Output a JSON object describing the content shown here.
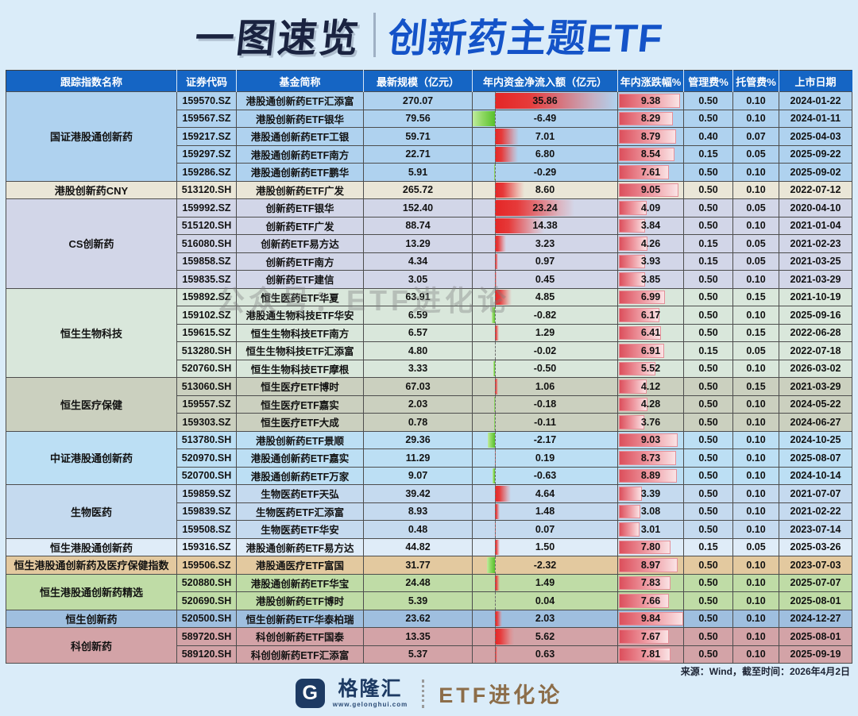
{
  "title": {
    "left": "一图速览",
    "right": "创新药主题ETF"
  },
  "watermark": "公众号：ETF进化论",
  "footer": {
    "source": "来源：Wind，截至时间：2026年4月2日",
    "logo_letter": "G",
    "logo_text": "格隆汇",
    "logo_url": "www.gelonghui.com",
    "brand": "ETF进化论"
  },
  "colors": {
    "page_bg": "#DAECF9",
    "header_bg": "#1565C4",
    "title_left": "#1A2340",
    "title_right": "#1453C8",
    "inflow_positive_bar": "#E42626",
    "inflow_negative_bar": "#8ED862",
    "change_bar": "#DC4F5C",
    "brand": "#8C6D49"
  },
  "chart_data": {
    "type": "table",
    "title": "一图速览 | 创新药主题ETF",
    "columns": [
      "跟踪指数名称",
      "证券代码",
      "基金简称",
      "最新规模（亿元）",
      "年内资金净流入额（亿元）",
      "年内涨跌幅%",
      "管理费%",
      "托管费%",
      "上市日期"
    ],
    "inflow_axis": {
      "min": -6.49,
      "max": 35.86
    },
    "change_axis": {
      "min": 0,
      "max": 9.84
    },
    "groups": [
      {
        "index_name": "国证港股通创新药",
        "color": "#AFD2EF",
        "rows": [
          {
            "code": "159570.SZ",
            "name": "港股通创新药ETF汇添富",
            "scale": "270.07",
            "inflow": 35.86,
            "change": 9.38,
            "mgmt_fee": "0.50",
            "custody_fee": "0.10",
            "list_date": "2024-01-22"
          },
          {
            "code": "159567.SZ",
            "name": "港股创新药ETF银华",
            "scale": "79.56",
            "inflow": -6.49,
            "change": 8.29,
            "mgmt_fee": "0.50",
            "custody_fee": "0.10",
            "list_date": "2024-01-11"
          },
          {
            "code": "159217.SZ",
            "name": "港股通创新药ETF工银",
            "scale": "59.71",
            "inflow": 7.01,
            "change": 8.79,
            "mgmt_fee": "0.40",
            "custody_fee": "0.07",
            "list_date": "2025-04-03"
          },
          {
            "code": "159297.SZ",
            "name": "港股通创新药ETF南方",
            "scale": "22.71",
            "inflow": 6.8,
            "change": 8.54,
            "mgmt_fee": "0.15",
            "custody_fee": "0.05",
            "list_date": "2025-09-22"
          },
          {
            "code": "159286.SZ",
            "name": "港股通创新药ETF鹏华",
            "scale": "5.91",
            "inflow": -0.29,
            "change": 7.61,
            "mgmt_fee": "0.50",
            "custody_fee": "0.10",
            "list_date": "2025-09-02"
          }
        ]
      },
      {
        "index_name": "港股创新药CNY",
        "color": "#EAE6D7",
        "rows": [
          {
            "code": "513120.SH",
            "name": "港股创新药ETF广发",
            "scale": "265.72",
            "inflow": 8.6,
            "change": 9.05,
            "mgmt_fee": "0.50",
            "custody_fee": "0.10",
            "list_date": "2022-07-12"
          }
        ]
      },
      {
        "index_name": "CS创新药",
        "color": "#D2D6E8",
        "rows": [
          {
            "code": "159992.SZ",
            "name": "创新药ETF银华",
            "scale": "152.40",
            "inflow": 23.24,
            "change": 4.09,
            "mgmt_fee": "0.50",
            "custody_fee": "0.05",
            "list_date": "2020-04-10"
          },
          {
            "code": "515120.SH",
            "name": "创新药ETF广发",
            "scale": "88.74",
            "inflow": 14.38,
            "change": 3.84,
            "mgmt_fee": "0.50",
            "custody_fee": "0.10",
            "list_date": "2021-01-04"
          },
          {
            "code": "516080.SH",
            "name": "创新药ETF易方达",
            "scale": "13.29",
            "inflow": 3.23,
            "change": 4.26,
            "mgmt_fee": "0.15",
            "custody_fee": "0.05",
            "list_date": "2021-02-23"
          },
          {
            "code": "159858.SZ",
            "name": "创新药ETF南方",
            "scale": "4.34",
            "inflow": 0.97,
            "change": 3.93,
            "mgmt_fee": "0.15",
            "custody_fee": "0.05",
            "list_date": "2021-03-25"
          },
          {
            "code": "159835.SZ",
            "name": "创新药ETF建信",
            "scale": "3.05",
            "inflow": 0.45,
            "change": 3.85,
            "mgmt_fee": "0.50",
            "custody_fee": "0.10",
            "list_date": "2021-03-29"
          }
        ]
      },
      {
        "index_name": "恒生生物科技",
        "color": "#D9E7DB",
        "rows": [
          {
            "code": "159892.SZ",
            "name": "恒生医药ETF华夏",
            "scale": "63.91",
            "inflow": 4.85,
            "change": 6.99,
            "mgmt_fee": "0.50",
            "custody_fee": "0.15",
            "list_date": "2021-10-19"
          },
          {
            "code": "159102.SZ",
            "name": "港股通生物科技ETF华安",
            "scale": "6.59",
            "inflow": -0.82,
            "change": 6.17,
            "mgmt_fee": "0.50",
            "custody_fee": "0.10",
            "list_date": "2025-09-16"
          },
          {
            "code": "159615.SZ",
            "name": "恒生生物科技ETF南方",
            "scale": "6.57",
            "inflow": 1.29,
            "change": 6.41,
            "mgmt_fee": "0.50",
            "custody_fee": "0.15",
            "list_date": "2022-06-28"
          },
          {
            "code": "513280.SH",
            "name": "恒生生物科技ETF汇添富",
            "scale": "4.80",
            "inflow": -0.02,
            "change": 6.91,
            "mgmt_fee": "0.15",
            "custody_fee": "0.05",
            "list_date": "2022-07-18"
          },
          {
            "code": "520760.SH",
            "name": "恒生生物科技ETF摩根",
            "scale": "3.33",
            "inflow": -0.5,
            "change": 5.52,
            "mgmt_fee": "0.50",
            "custody_fee": "0.10",
            "list_date": "2026-03-02"
          }
        ]
      },
      {
        "index_name": "恒生医疗保健",
        "color": "#CBD0BF",
        "rows": [
          {
            "code": "513060.SH",
            "name": "恒生医疗ETF博时",
            "scale": "67.03",
            "inflow": 1.06,
            "change": 4.12,
            "mgmt_fee": "0.50",
            "custody_fee": "0.15",
            "list_date": "2021-03-29"
          },
          {
            "code": "159557.SZ",
            "name": "恒生医疗ETF嘉实",
            "scale": "2.03",
            "inflow": -0.18,
            "change": 4.28,
            "mgmt_fee": "0.50",
            "custody_fee": "0.10",
            "list_date": "2024-05-22"
          },
          {
            "code": "159303.SZ",
            "name": "恒生医疗ETF大成",
            "scale": "0.78",
            "inflow": -0.11,
            "change": 3.76,
            "mgmt_fee": "0.50",
            "custody_fee": "0.10",
            "list_date": "2024-06-27"
          }
        ]
      },
      {
        "index_name": "中证港股通创新药",
        "color": "#BCDFF4",
        "rows": [
          {
            "code": "513780.SH",
            "name": "港股创新药ETF景顺",
            "scale": "29.36",
            "inflow": -2.17,
            "change": 9.03,
            "mgmt_fee": "0.50",
            "custody_fee": "0.10",
            "list_date": "2024-10-25"
          },
          {
            "code": "520970.SH",
            "name": "港股通创新药ETF嘉实",
            "scale": "11.29",
            "inflow": 0.19,
            "change": 8.73,
            "mgmt_fee": "0.50",
            "custody_fee": "0.10",
            "list_date": "2025-08-07"
          },
          {
            "code": "520700.SH",
            "name": "港股通创新药ETF万家",
            "scale": "9.07",
            "inflow": -0.63,
            "change": 8.89,
            "mgmt_fee": "0.50",
            "custody_fee": "0.10",
            "list_date": "2024-10-14"
          }
        ]
      },
      {
        "index_name": "生物医药",
        "color": "#C5DAEF",
        "rows": [
          {
            "code": "159859.SZ",
            "name": "生物医药ETF天弘",
            "scale": "39.42",
            "inflow": 4.64,
            "change": 3.39,
            "mgmt_fee": "0.50",
            "custody_fee": "0.10",
            "list_date": "2021-07-07"
          },
          {
            "code": "159839.SZ",
            "name": "生物医药ETF汇添富",
            "scale": "8.93",
            "inflow": 1.48,
            "change": 3.08,
            "mgmt_fee": "0.50",
            "custody_fee": "0.10",
            "list_date": "2021-02-22"
          },
          {
            "code": "159508.SZ",
            "name": "生物医药ETF华安",
            "scale": "0.48",
            "inflow": 0.07,
            "change": 3.01,
            "mgmt_fee": "0.50",
            "custody_fee": "0.10",
            "list_date": "2023-07-14"
          }
        ]
      },
      {
        "index_name": "恒生港股通创新药",
        "color": "#DFECF8",
        "rows": [
          {
            "code": "159316.SZ",
            "name": "港股通创新药ETF易方达",
            "scale": "44.82",
            "inflow": 1.5,
            "change": 7.8,
            "mgmt_fee": "0.15",
            "custody_fee": "0.05",
            "list_date": "2025-03-26"
          }
        ]
      },
      {
        "index_name": "恒生港股通创新药及医疗保健指数",
        "color": "#E3C99F",
        "rows": [
          {
            "code": "159506.SZ",
            "name": "港股通医疗ETF富国",
            "scale": "31.77",
            "inflow": -2.32,
            "change": 8.97,
            "mgmt_fee": "0.50",
            "custody_fee": "0.10",
            "list_date": "2023-07-03"
          }
        ]
      },
      {
        "index_name": "恒生港股通创新药精选",
        "color": "#BFDCA6",
        "rows": [
          {
            "code": "520880.SH",
            "name": "港股通创新药ETF华宝",
            "scale": "24.48",
            "inflow": 1.49,
            "change": 7.83,
            "mgmt_fee": "0.50",
            "custody_fee": "0.10",
            "list_date": "2025-07-07"
          },
          {
            "code": "520690.SH",
            "name": "港股创新药ETF博时",
            "scale": "5.39",
            "inflow": 0.04,
            "change": 7.66,
            "mgmt_fee": "0.50",
            "custody_fee": "0.10",
            "list_date": "2025-08-01"
          }
        ]
      },
      {
        "index_name": "恒生创新药",
        "color": "#9FBFDF",
        "rows": [
          {
            "code": "520500.SH",
            "name": "恒生创新药ETF华泰柏瑞",
            "scale": "23.62",
            "inflow": 2.03,
            "change": 9.84,
            "mgmt_fee": "0.50",
            "custody_fee": "0.10",
            "list_date": "2024-12-27"
          }
        ]
      },
      {
        "index_name": "科创新药",
        "color": "#D3A3A7",
        "rows": [
          {
            "code": "589720.SH",
            "name": "科创创新药ETF国泰",
            "scale": "13.35",
            "inflow": 5.62,
            "change": 7.67,
            "mgmt_fee": "0.50",
            "custody_fee": "0.10",
            "list_date": "2025-08-01"
          },
          {
            "code": "589120.SH",
            "name": "科创创新药ETF汇添富",
            "scale": "5.37",
            "inflow": 0.63,
            "change": 7.81,
            "mgmt_fee": "0.50",
            "custody_fee": "0.10",
            "list_date": "2025-09-19"
          }
        ]
      }
    ]
  }
}
